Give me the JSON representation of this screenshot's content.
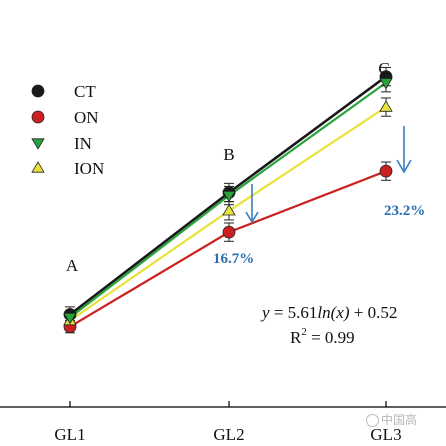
{
  "chart_data": {
    "type": "line",
    "categories": [
      "GL1",
      "GL2",
      "GL3"
    ],
    "ylim": [
      0,
      1
    ],
    "grid": false,
    "legend_position": "top-left",
    "series": [
      {
        "name": "CT",
        "color": "#1a1a1a",
        "marker": "circle",
        "values": [
          0.1,
          0.5,
          0.88
        ],
        "errors": [
          0.025,
          0.03,
          0.03
        ]
      },
      {
        "name": "ON",
        "color": "#cc2020",
        "marker": "circle",
        "values": [
          0.06,
          0.37,
          0.57
        ],
        "errors": [
          0.02,
          0.03,
          0.03
        ]
      },
      {
        "name": "IN",
        "color": "#27a33a",
        "marker": "triangle-down",
        "values": [
          0.09,
          0.49,
          0.86
        ],
        "errors": [
          0.02,
          0.03,
          0.03
        ]
      },
      {
        "name": "ION",
        "color": "#e8e23a",
        "marker": "triangle-up",
        "values": [
          0.08,
          0.44,
          0.78
        ],
        "errors": [
          0.02,
          0.03,
          0.03
        ]
      }
    ],
    "group_letters": [
      "A",
      "B",
      "C"
    ],
    "annotations": {
      "gl2_reduction": "16.7%",
      "gl3_reduction": "23.2%",
      "arrow_color": "#3a7fc0",
      "equation_y": "y",
      "equation_eq": " = 5.61",
      "equation_ln": "ln(x)",
      "equation_tail": " + 0.52",
      "r2_base": "R",
      "r2_sup": "2",
      "r2_tail": " = 0.99"
    }
  },
  "watermark": {
    "text": "中国高"
  }
}
